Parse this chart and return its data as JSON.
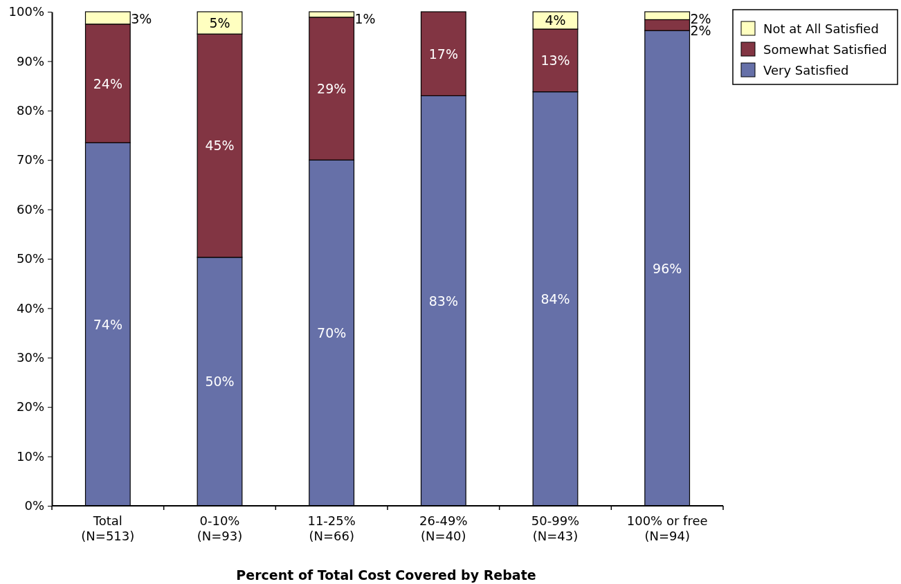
{
  "chart_data": {
    "type": "bar",
    "stacked": true,
    "xlabel": "Percent of Total Cost Covered by Rebate",
    "categories": [
      "Total\n(N=513)",
      "0-10%\n(N=93)",
      "11-25%\n(N=66)",
      "26-49%\n(N=40)",
      "50-99%\n(N=43)",
      "100% or free\n(N=94)"
    ],
    "series": [
      {
        "name": "Very Satisfied",
        "color": "#6670a8",
        "values": [
          73.5,
          50.3,
          70,
          83,
          83.8,
          96.2
        ],
        "value_labels": [
          "74%",
          "50%",
          "70%",
          "83%",
          "84%",
          "96%"
        ]
      },
      {
        "name": "Somewhat Satisfied",
        "color": "#823543",
        "values": [
          24,
          45.2,
          28.9,
          17,
          12.7,
          2.2
        ],
        "value_labels": [
          "24%",
          "45%",
          "29%",
          "17%",
          "13%",
          "2%"
        ]
      },
      {
        "name": "Not at All Satisfied",
        "color": "#ffffc0",
        "values": [
          2.5,
          4.5,
          1.1,
          0,
          3.5,
          1.6
        ],
        "value_labels": [
          "3%",
          "5%",
          "1%",
          null,
          "4%",
          "2%"
        ]
      }
    ],
    "ylim": [
      0,
      100
    ],
    "yticks": [
      {
        "value": 0,
        "label": "0%"
      },
      {
        "value": 10,
        "label": "10%"
      },
      {
        "value": 20,
        "label": "20%"
      },
      {
        "value": 30,
        "label": "30%"
      },
      {
        "value": 40,
        "label": "40%"
      },
      {
        "value": 50,
        "label": "50%"
      },
      {
        "value": 60,
        "label": "60%"
      },
      {
        "value": 70,
        "label": "70%"
      },
      {
        "value": 80,
        "label": "80%"
      },
      {
        "value": 90,
        "label": "90%"
      },
      {
        "value": 100,
        "label": "100%"
      }
    ],
    "grid": false,
    "legend": "top right"
  }
}
